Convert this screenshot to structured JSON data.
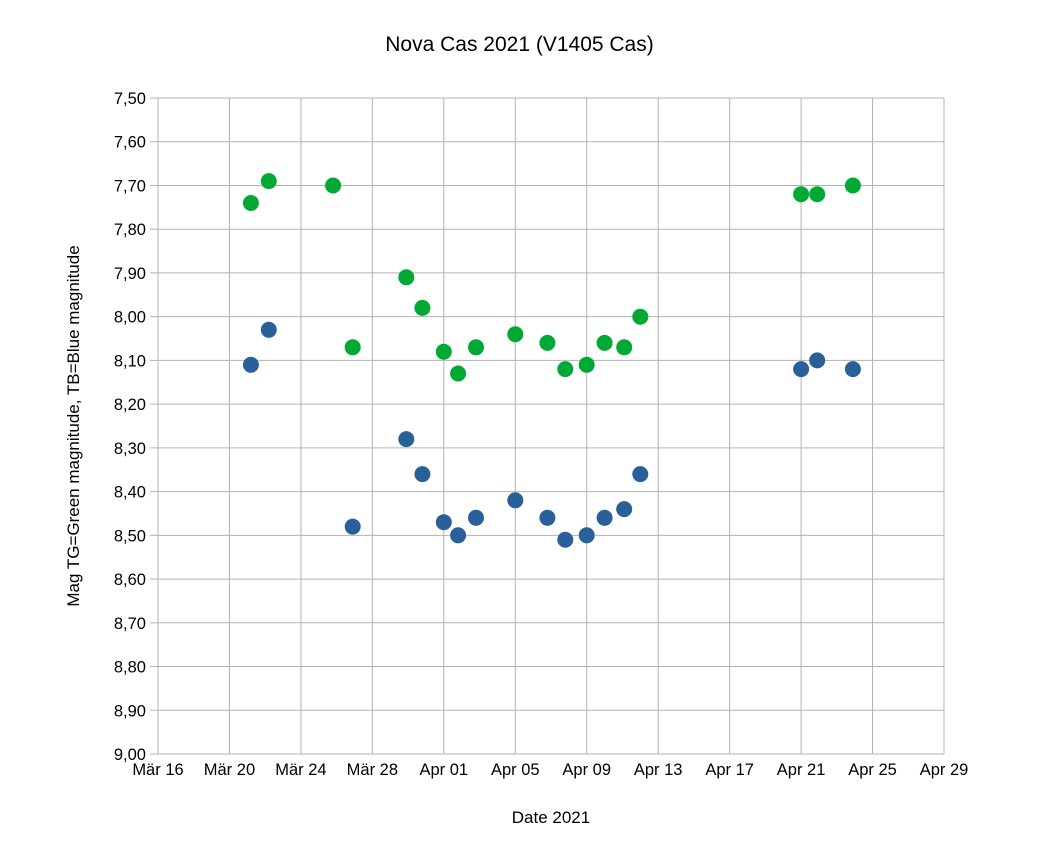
{
  "chart_data": {
    "type": "scatter",
    "title": "Nova Cas 2021 (V1405 Cas)",
    "xlabel": "Date 2021",
    "ylabel": "Mag TG=Green magnitude, TB=Blue magnitude",
    "grid": true,
    "legend": "none",
    "background_color": "#ffffff",
    "gridline_color": "#b3b3b3",
    "x_axis": {
      "tick_labels": [
        "Mär 16",
        "Mär 20",
        "Mär 24",
        "Mär 28",
        "Apr 01",
        "Apr 05",
        "Apr 09",
        "Apr 13",
        "Apr 17",
        "Apr 21",
        "Apr 25",
        "Apr 29"
      ],
      "tick_interval_days": 4,
      "range_days": [
        0,
        44
      ]
    },
    "y_axis": {
      "tick_labels": [
        "7,50",
        "7,60",
        "7,70",
        "7,80",
        "7,90",
        "8,00",
        "8,10",
        "8,20",
        "8,30",
        "8,40",
        "8,50",
        "8,60",
        "8,70",
        "8,80",
        "8,90",
        "9,00"
      ],
      "min": 7.5,
      "max": 9.0,
      "step": 0.1,
      "inverted_magnitude_scale": true,
      "decimal_separator": ","
    },
    "series": [
      {
        "name": "TG (Green magnitude)",
        "color": "#00A933",
        "marker": "circle",
        "points": [
          {
            "date": "Mär 21",
            "day": 5.2,
            "mag": 7.74
          },
          {
            "date": "Mär 22",
            "day": 6.2,
            "mag": 7.69
          },
          {
            "date": "Mär 26",
            "day": 9.8,
            "mag": 7.7
          },
          {
            "date": "Mär 27",
            "day": 10.9,
            "mag": 8.07
          },
          {
            "date": "Mär 30",
            "day": 13.9,
            "mag": 7.91
          },
          {
            "date": "Mär 31",
            "day": 14.8,
            "mag": 7.98
          },
          {
            "date": "Apr 01",
            "day": 16.0,
            "mag": 8.08
          },
          {
            "date": "Apr 02",
            "day": 16.8,
            "mag": 8.13
          },
          {
            "date": "Apr 03",
            "day": 17.8,
            "mag": 8.07
          },
          {
            "date": "Apr 05",
            "day": 20.0,
            "mag": 8.04
          },
          {
            "date": "Apr 07",
            "day": 21.8,
            "mag": 8.06
          },
          {
            "date": "Apr 08",
            "day": 22.8,
            "mag": 8.12
          },
          {
            "date": "Apr 09",
            "day": 24.0,
            "mag": 8.11
          },
          {
            "date": "Apr 10",
            "day": 25.0,
            "mag": 8.06
          },
          {
            "date": "Apr 11",
            "day": 26.1,
            "mag": 8.07
          },
          {
            "date": "Apr 12",
            "day": 27.0,
            "mag": 8.0
          },
          {
            "date": "Apr 21",
            "day": 36.0,
            "mag": 7.72
          },
          {
            "date": "Apr 22",
            "day": 36.9,
            "mag": 7.72
          },
          {
            "date": "Apr 24",
            "day": 38.9,
            "mag": 7.7
          }
        ]
      },
      {
        "name": "TB (Blue magnitude)",
        "color": "#2A6099",
        "marker": "circle",
        "points": [
          {
            "date": "Mär 21",
            "day": 5.2,
            "mag": 8.11
          },
          {
            "date": "Mär 22",
            "day": 6.2,
            "mag": 8.03
          },
          {
            "date": "Mär 27",
            "day": 10.9,
            "mag": 8.48
          },
          {
            "date": "Mär 30",
            "day": 13.9,
            "mag": 8.28
          },
          {
            "date": "Mär 31",
            "day": 14.8,
            "mag": 8.36
          },
          {
            "date": "Apr 01",
            "day": 16.0,
            "mag": 8.47
          },
          {
            "date": "Apr 02",
            "day": 16.8,
            "mag": 8.5
          },
          {
            "date": "Apr 03",
            "day": 17.8,
            "mag": 8.46
          },
          {
            "date": "Apr 05",
            "day": 20.0,
            "mag": 8.42
          },
          {
            "date": "Apr 07",
            "day": 21.8,
            "mag": 8.46
          },
          {
            "date": "Apr 08",
            "day": 22.8,
            "mag": 8.51
          },
          {
            "date": "Apr 09",
            "day": 24.0,
            "mag": 8.5
          },
          {
            "date": "Apr 10",
            "day": 25.0,
            "mag": 8.46
          },
          {
            "date": "Apr 11",
            "day": 26.1,
            "mag": 8.44
          },
          {
            "date": "Apr 12",
            "day": 27.0,
            "mag": 8.36
          },
          {
            "date": "Apr 21",
            "day": 36.0,
            "mag": 8.12
          },
          {
            "date": "Apr 22",
            "day": 36.9,
            "mag": 8.1
          },
          {
            "date": "Apr 24",
            "day": 38.9,
            "mag": 8.12
          }
        ]
      }
    ]
  }
}
